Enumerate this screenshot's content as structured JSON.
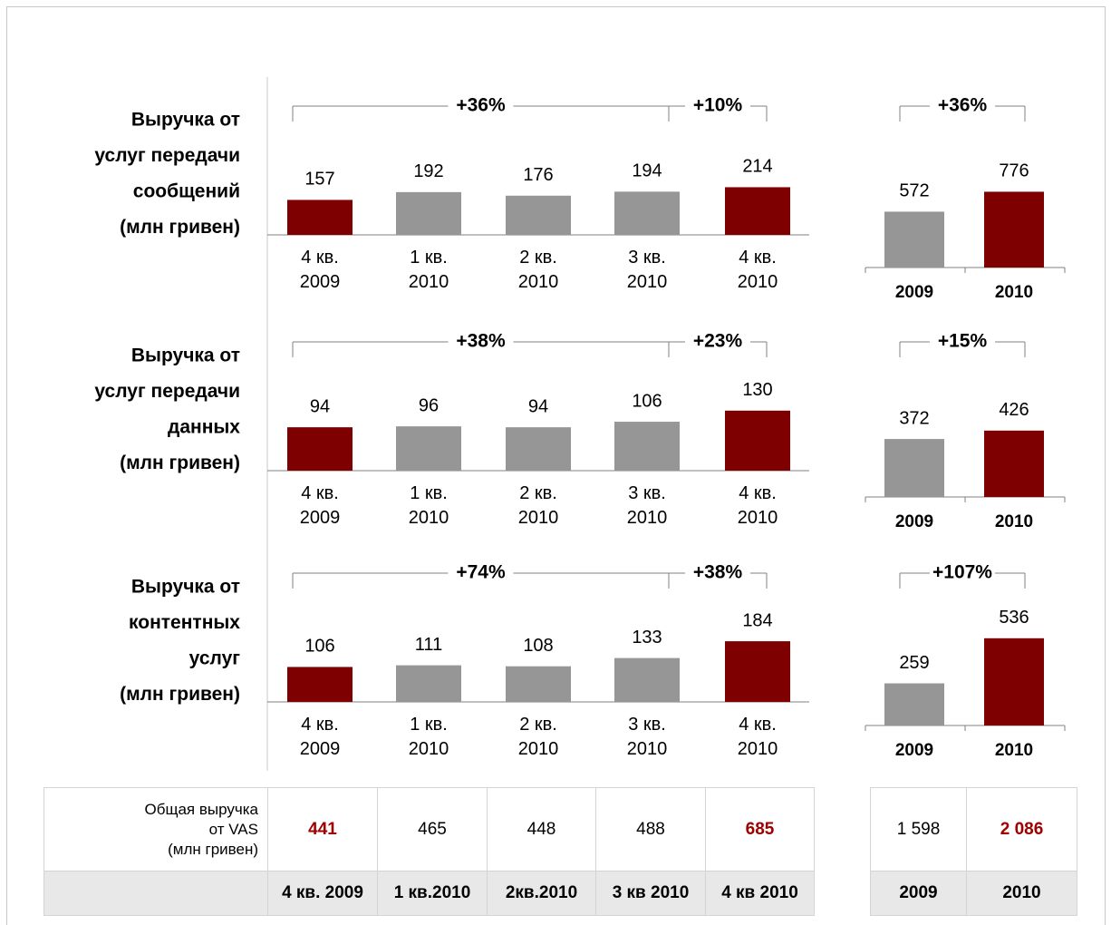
{
  "chart_data": [
    {
      "type": "bar",
      "title": [
        "Выручка от",
        "услуг передачи",
        "сообщений",
        "(млн гривен)"
      ],
      "categories": [
        "4 кв. 2009",
        "1 кв. 2010",
        "2 кв. 2010",
        "3 кв. 2010",
        "4 кв. 2010"
      ],
      "values": [
        157,
        192,
        176,
        194,
        214
      ],
      "colors": [
        "#7f0000",
        "#969696",
        "#969696",
        "#969696",
        "#7f0000"
      ],
      "ylim": [
        0,
        570
      ],
      "annotations": [
        "+36%",
        "+10%"
      ]
    },
    {
      "type": "bar",
      "categories": [
        "2009",
        "2010"
      ],
      "values": [
        572,
        776
      ],
      "colors": [
        "#969696",
        "#7f0000"
      ],
      "ylim": [
        0,
        1300
      ],
      "annotations": [
        "+36%"
      ]
    },
    {
      "type": "bar",
      "title": [
        "Выручка от",
        "услуг передачи",
        "данных",
        "(млн гривен)"
      ],
      "categories": [
        "4 кв. 2009",
        "1 кв. 2010",
        "2 кв. 2010",
        "3 кв. 2010",
        "4 кв. 2010"
      ],
      "values": [
        94,
        96,
        94,
        106,
        130
      ],
      "colors": [
        "#7f0000",
        "#969696",
        "#969696",
        "#969696",
        "#7f0000"
      ],
      "ylim": [
        0,
        275
      ],
      "annotations": [
        "+38%",
        "+23%"
      ]
    },
    {
      "type": "bar",
      "categories": [
        "2009",
        "2010"
      ],
      "values": [
        372,
        426
      ],
      "colors": [
        "#969696",
        "#7f0000"
      ],
      "ylim": [
        0,
        815
      ],
      "annotations": [
        "+15%"
      ]
    },
    {
      "type": "bar",
      "title": [
        "Выручка от",
        "контентных",
        "услуг",
        "(млн гривен)"
      ],
      "categories": [
        "4 кв. 2009",
        "1 кв. 2010",
        "2 кв. 2010",
        "3 кв. 2010",
        "4 кв. 2010"
      ],
      "values": [
        106,
        111,
        108,
        133,
        184
      ],
      "colors": [
        "#7f0000",
        "#969696",
        "#969696",
        "#969696",
        "#7f0000"
      ],
      "ylim": [
        0,
        385
      ],
      "annotations": [
        "+74%",
        "+38%"
      ]
    },
    {
      "type": "bar",
      "categories": [
        "2009",
        "2010"
      ],
      "values": [
        259,
        536
      ],
      "colors": [
        "#969696",
        "#7f0000"
      ],
      "ylim": [
        0,
        780
      ],
      "annotations": [
        "+107%"
      ]
    }
  ],
  "table": {
    "label": [
      "Общая выручка",
      "от VAS",
      "(млн гривен)"
    ],
    "highlight_color": "#a00000",
    "quarterly": {
      "values": [
        "441",
        "465",
        "448",
        "488",
        "685"
      ],
      "headers": [
        "4 кв. 2009",
        "1 кв.2010",
        "2кв.2010",
        "3 кв 2010",
        "4 кв 2010"
      ],
      "highlight": [
        true,
        false,
        false,
        false,
        true
      ]
    },
    "annual": {
      "values": [
        "1 598",
        "2 086"
      ],
      "headers": [
        "2009",
        "2010"
      ],
      "highlight": [
        false,
        true
      ]
    }
  }
}
